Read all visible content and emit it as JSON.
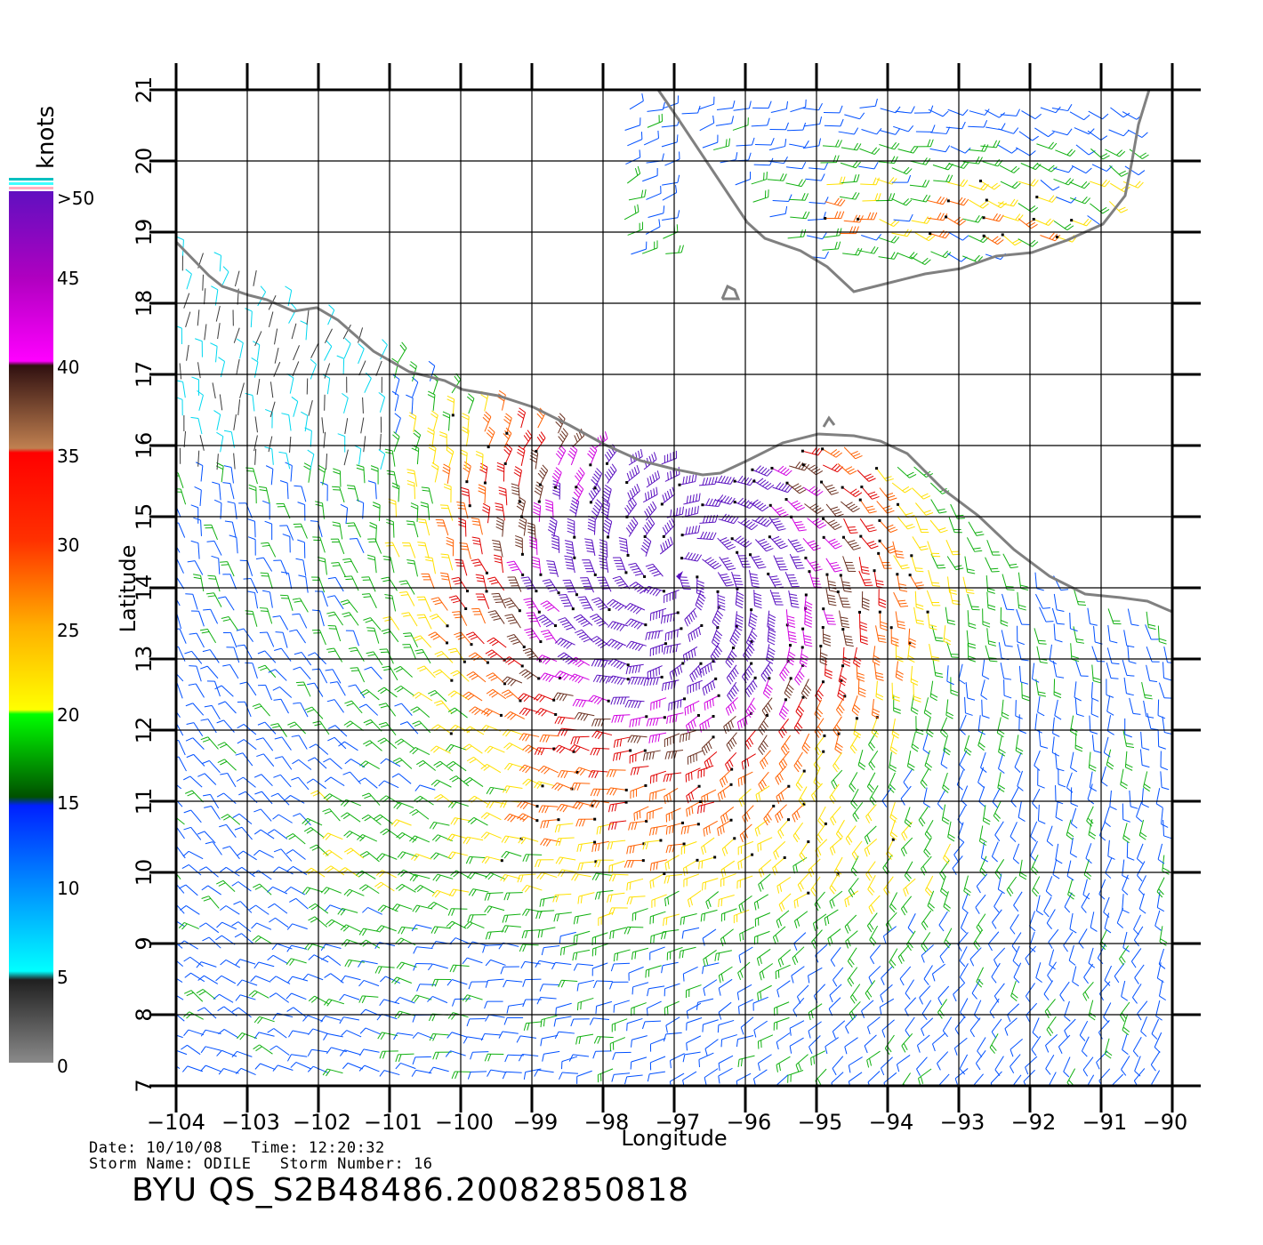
{
  "map": {
    "xlabel": "Longitude",
    "ylabel": "Latitude",
    "lon_range": [
      -104,
      -90
    ],
    "lat_range": [
      7,
      21
    ],
    "lon_ticks": [
      "−104",
      "−103",
      "−102",
      "−101",
      "−100",
      "−99",
      "−98",
      "−97",
      "−96",
      "−95",
      "−94",
      "−93",
      "−92",
      "−91",
      "−90"
    ],
    "lat_ticks": [
      "7",
      "8",
      "9",
      "10",
      "11",
      "12",
      "13",
      "14",
      "15",
      "16",
      "17",
      "18",
      "19",
      "20",
      "21"
    ],
    "grid": true,
    "storm_center": {
      "lon": -97,
      "lat": 14.2
    }
  },
  "legend": {
    "unit": "knots",
    "labels": [
      "0",
      "5",
      "10",
      "15",
      "20",
      "25",
      "30",
      "35",
      "40",
      "45",
      ">50"
    ],
    "colors": {
      "calm": "#3a3a3a",
      "light": "#00d8f0",
      "moderate": "#0050ff",
      "fresh": "#10b010",
      "strong": "#ffe000",
      "gale": "#ff6000",
      "storm": "#e00000",
      "severe": "#6a3020",
      "violent": "#d000e0",
      "extreme": "#5a10c0",
      "coast": "#808080"
    }
  },
  "info": {
    "date_line": "Date: 10/10/08   Time: 12:20:32",
    "storm_line": "Storm Name: ODILE   Storm Number: 16",
    "product_id": "BYU QS_S2B48486.20082850818"
  }
}
